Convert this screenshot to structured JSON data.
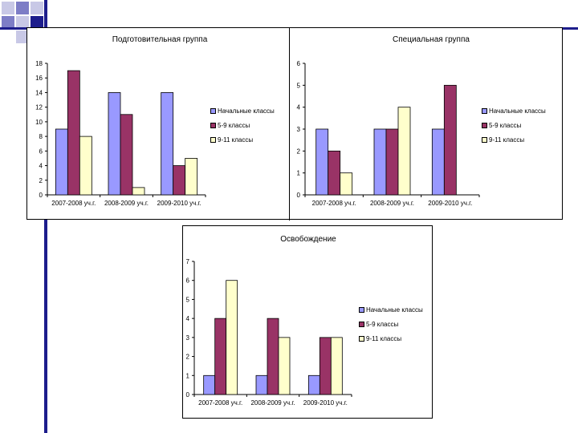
{
  "colors": {
    "series": [
      "#9999ff",
      "#993366",
      "#ffffcc"
    ],
    "decor_dark": "#1d1d8c",
    "decor_mid": "#7d7dc6",
    "decor_light": "#c8c8e6"
  },
  "chart_data": [
    {
      "type": "bar",
      "title": "Подготовительная группа",
      "categories": [
        "2007-2008 уч.г.",
        "2008-2009 уч.г.",
        "2009-2010 уч.г."
      ],
      "series": [
        {
          "name": "Начальные классы",
          "values": [
            9,
            14,
            14
          ]
        },
        {
          "name": "5-9 классы",
          "values": [
            17,
            11,
            4
          ]
        },
        {
          "name": "9-11 классы",
          "values": [
            8,
            1,
            5
          ]
        }
      ],
      "ylim": [
        0,
        18
      ],
      "yticks": [
        0,
        2,
        4,
        6,
        8,
        10,
        12,
        14,
        16,
        18
      ],
      "legend": "right"
    },
    {
      "type": "bar",
      "title": "Специальная группа",
      "categories": [
        "2007-2008 уч.г.",
        "2008-2009 уч.г.",
        "2009-2010 уч.г."
      ],
      "series": [
        {
          "name": "Начальные классы",
          "values": [
            3,
            3,
            3
          ]
        },
        {
          "name": "5-9 классы",
          "values": [
            2,
            3,
            5
          ]
        },
        {
          "name": "9-11 классы",
          "values": [
            1,
            4,
            null
          ]
        }
      ],
      "ylim": [
        0,
        6
      ],
      "yticks": [
        0,
        1,
        2,
        3,
        4,
        5,
        6
      ],
      "legend": "right"
    },
    {
      "type": "bar",
      "title": "Освобождение",
      "categories": [
        "2007-2008 уч.г.",
        "2008-2009 уч.г.",
        "2009-2010 уч.г."
      ],
      "series": [
        {
          "name": "Начальные классы",
          "values": [
            1,
            1,
            1
          ]
        },
        {
          "name": "5-9 классы",
          "values": [
            4,
            4,
            3
          ]
        },
        {
          "name": "9-11 классы",
          "values": [
            6,
            3,
            3
          ]
        }
      ],
      "ylim": [
        0,
        7
      ],
      "yticks": [
        0,
        1,
        2,
        3,
        4,
        5,
        6,
        7
      ],
      "legend": "right"
    }
  ]
}
